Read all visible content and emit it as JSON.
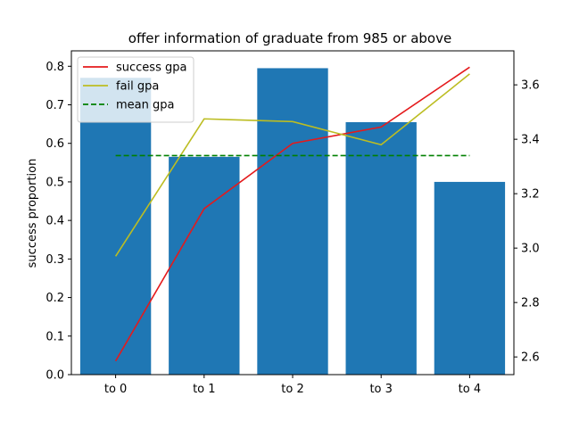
{
  "chart_data": {
    "type": "bar+line",
    "title": "offer information of graduate from 985 or above",
    "categories": [
      "to 0",
      "to 1",
      "to 2",
      "to 3",
      "to 4"
    ],
    "bars": {
      "name": "",
      "values": [
        0.77,
        0.565,
        0.795,
        0.655,
        0.5
      ],
      "color": "#1f77b4",
      "axis": "left"
    },
    "lines": [
      {
        "name": "success gpa",
        "values": [
          2.585,
          3.145,
          3.385,
          3.445,
          3.665
        ],
        "color": "#e41a1c",
        "style": "solid",
        "axis": "right"
      },
      {
        "name": "fail gpa",
        "values": [
          2.97,
          3.475,
          3.465,
          3.38,
          3.64
        ],
        "color": "#bcbd22",
        "style": "solid",
        "axis": "right"
      },
      {
        "name": "mean gpa",
        "values": [
          3.34,
          3.34,
          3.34,
          3.34,
          3.34
        ],
        "color": "#008000",
        "style": "dashed",
        "axis": "right"
      }
    ],
    "ylabel": "success proportion",
    "y2label": "",
    "ylim": [
      0,
      0.84
    ],
    "y2lim": [
      2.535,
      3.725
    ],
    "yticks": [
      "0.0",
      "0.1",
      "0.2",
      "0.3",
      "0.4",
      "0.5",
      "0.6",
      "0.7",
      "0.8"
    ],
    "y2ticks": [
      "2.6",
      "2.8",
      "3.0",
      "3.2",
      "3.4",
      "3.6"
    ],
    "legend": "top-left",
    "grid": false
  }
}
